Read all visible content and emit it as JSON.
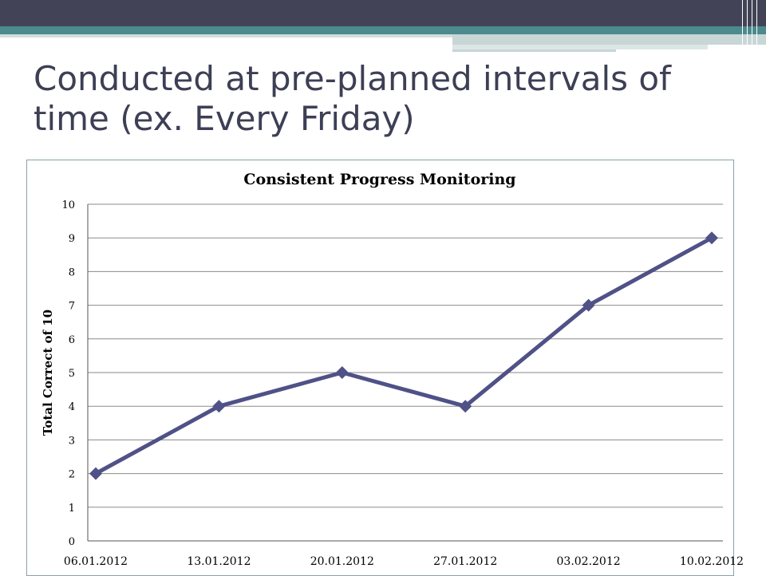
{
  "slide": {
    "title": "Conducted at pre-planned intervals of time (ex. Every Friday)"
  },
  "chart_data": {
    "type": "line",
    "title": "Consistent Progress Monitoring",
    "xlabel": "",
    "ylabel": "Total Correct of 10",
    "categories": [
      "06.01.2012",
      "13.01.2012",
      "20.01.2012",
      "27.01.2012",
      "03.02.2012",
      "10.02.2012"
    ],
    "series": [
      {
        "values": [
          2,
          4,
          5,
          4,
          7,
          9
        ],
        "color": "#4f5187",
        "marker": "diamond"
      }
    ],
    "ylim": [
      0,
      10
    ],
    "yticks": [
      0,
      1,
      2,
      3,
      4,
      5,
      6,
      7,
      8,
      9,
      10
    ],
    "grid": true,
    "legend": "none"
  }
}
